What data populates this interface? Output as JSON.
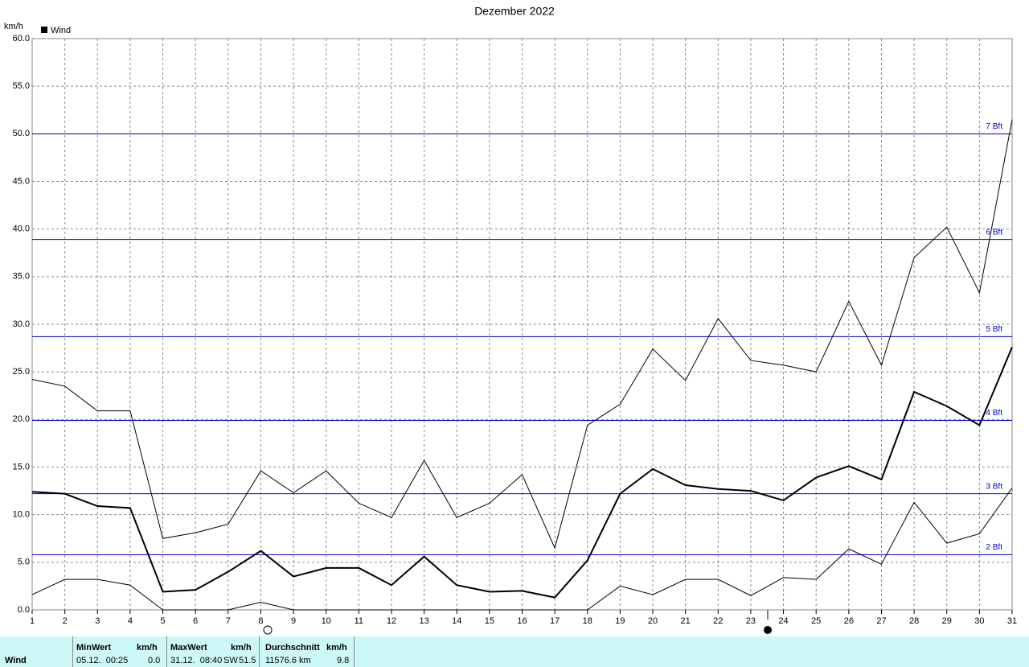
{
  "chart_data": {
    "type": "line",
    "title": "Dezember 2022",
    "y_label": "km/h",
    "x": [
      1,
      2,
      3,
      4,
      5,
      6,
      7,
      8,
      9,
      10,
      11,
      12,
      13,
      14,
      15,
      16,
      17,
      18,
      19,
      20,
      21,
      22,
      23,
      24,
      25,
      26,
      27,
      28,
      29,
      30,
      31
    ],
    "xlim": [
      1,
      31
    ],
    "series": [
      {
        "color": "#000000",
        "width": 1,
        "values": [
          24.2,
          23.5,
          20.9,
          20.9,
          7.5,
          8.1,
          9.0,
          14.6,
          12.3,
          14.6,
          11.2,
          9.7,
          15.7,
          9.7,
          11.2,
          14.2,
          6.5,
          19.4,
          21.6,
          27.4,
          24.1,
          30.6,
          26.2,
          25.7,
          25.0,
          32.4,
          25.7,
          37.0,
          40.2,
          33.3,
          51.5
        ]
      },
      {
        "name": "Wind",
        "color": "#000000",
        "width": 2,
        "values": [
          12.4,
          12.2,
          10.9,
          10.7,
          1.9,
          2.1,
          4.0,
          6.2,
          3.5,
          4.4,
          4.4,
          2.6,
          5.6,
          2.6,
          1.9,
          2.0,
          1.3,
          5.2,
          12.2,
          14.8,
          13.1,
          12.7,
          12.5,
          11.5,
          13.9,
          15.1,
          13.7,
          22.9,
          21.4,
          19.4,
          27.6
        ]
      },
      {
        "color": "#000000",
        "width": 1,
        "values": [
          1.6,
          3.2,
          3.2,
          2.6,
          0,
          0,
          0,
          0.8,
          0,
          0,
          0,
          0,
          0,
          0,
          0,
          0,
          0,
          0,
          2.5,
          1.6,
          3.2,
          3.2,
          1.5,
          3.4,
          3.2,
          6.4,
          4.8,
          11.3,
          7.0,
          8.0,
          12.8
        ]
      }
    ],
    "ylim": [
      0,
      60
    ],
    "yticks": [
      {
        "value": 0,
        "label": "0.0"
      },
      {
        "value": 5,
        "label": "5.0"
      },
      {
        "value": 10,
        "label": "10.0"
      },
      {
        "value": 15,
        "label": "15.0"
      },
      {
        "value": 20,
        "label": "20.0"
      },
      {
        "value": 25,
        "label": "25.0"
      },
      {
        "value": 30,
        "label": "30.0"
      },
      {
        "value": 35,
        "label": "35.0"
      },
      {
        "value": 40,
        "label": "40.0"
      },
      {
        "value": 45,
        "label": "45.0"
      },
      {
        "value": 50,
        "label": "50.0"
      },
      {
        "value": 55,
        "label": "55.0"
      },
      {
        "value": 60,
        "label": "60.0"
      }
    ],
    "grid": true,
    "reference_color": "#0000cc",
    "reference_lines": [
      {
        "value": 5.8,
        "label": "2 Bft"
      },
      {
        "value": 12.2,
        "label": "3 Bft"
      },
      {
        "value": 19.9,
        "label": "4 Bft"
      },
      {
        "value": 28.7,
        "label": "5 Bft"
      },
      {
        "value": 38.9,
        "label": "6 Bft"
      },
      {
        "value": 50.0,
        "label": "7 Bft"
      }
    ]
  },
  "stats_table": {
    "row_label": "Wind",
    "columns": [
      {
        "title": "MinWert",
        "unit": "km/h",
        "time": "05.12.  00:25",
        "value": "0.0"
      },
      {
        "title": "MaxWert",
        "unit": "km/h",
        "time": "31.12.  08:40",
        "direction": "SW",
        "value": "51.5"
      },
      {
        "title": "Durchschnitt",
        "unit": "km/h",
        "time": "11576.6 km",
        "value": "9.8"
      }
    ]
  }
}
